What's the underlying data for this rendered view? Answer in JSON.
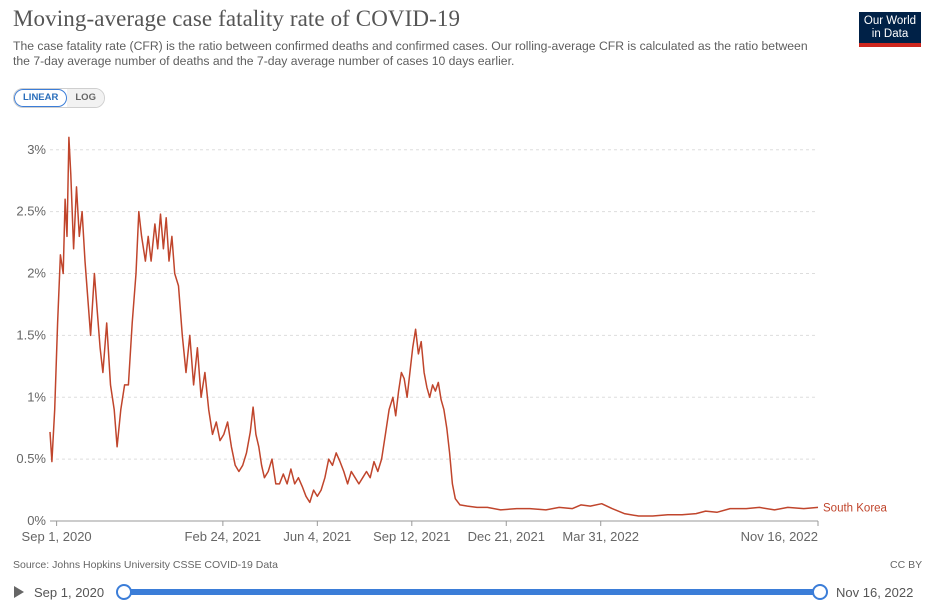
{
  "header": {
    "title": "Moving-average case fatality rate of COVID-19",
    "subtitle": "The case fatality rate (CFR) is the ratio between confirmed deaths and confirmed cases. Our rolling-average CFR is calculated as the ratio between the 7-day average number of deaths and the 7-day average number of cases 10 days earlier.",
    "logo_line1": "Our World",
    "logo_line2": "in Data"
  },
  "controls": {
    "linear_label": "LINEAR",
    "log_label": "LOG"
  },
  "footer": {
    "source": "Source: Johns Hopkins University CSSE COVID-19 Data",
    "license": "CC BY"
  },
  "timeline": {
    "start_label": "Sep 1, 2020",
    "end_label": "Nov 16, 2022"
  },
  "colors": {
    "series": "#c0452c",
    "grid": "#dddddd",
    "axis": "#666666",
    "accent": "#3b7dd8"
  },
  "chart_data": {
    "type": "line",
    "title": "Moving-average case fatality rate of COVID-19",
    "xlabel": "",
    "ylabel": "",
    "ylim": [
      0,
      3.2
    ],
    "y_ticks": [
      0,
      0.5,
      1,
      1.5,
      2,
      2.5,
      3
    ],
    "y_tick_labels": [
      "0%",
      "0.5%",
      "1%",
      "1.5%",
      "2%",
      "2.5%",
      "3%"
    ],
    "x_range": [
      "2020-08-25",
      "2022-11-16"
    ],
    "x_ticks": [
      "2020-09-01",
      "2021-02-24",
      "2021-06-04",
      "2021-09-12",
      "2021-12-21",
      "2022-03-31",
      "2022-11-16"
    ],
    "x_tick_labels": [
      "Sep 1, 2020",
      "Feb 24, 2021",
      "Jun 4, 2021",
      "Sep 12, 2021",
      "Dec 21, 2021",
      "Mar 31, 2022",
      "Nov 16, 2022"
    ],
    "grid": true,
    "series": [
      {
        "name": "South Korea",
        "points": [
          [
            "2020-08-25",
            0.72
          ],
          [
            "2020-08-27",
            0.48
          ],
          [
            "2020-08-30",
            0.9
          ],
          [
            "2020-09-02",
            1.6
          ],
          [
            "2020-09-05",
            2.15
          ],
          [
            "2020-09-08",
            2.0
          ],
          [
            "2020-09-10",
            2.6
          ],
          [
            "2020-09-12",
            2.3
          ],
          [
            "2020-09-14",
            3.1
          ],
          [
            "2020-09-16",
            2.8
          ],
          [
            "2020-09-19",
            2.2
          ],
          [
            "2020-09-22",
            2.7
          ],
          [
            "2020-09-25",
            2.3
          ],
          [
            "2020-09-28",
            2.5
          ],
          [
            "2020-10-01",
            2.1
          ],
          [
            "2020-10-04",
            1.8
          ],
          [
            "2020-10-07",
            1.5
          ],
          [
            "2020-10-11",
            2.0
          ],
          [
            "2020-10-14",
            1.7
          ],
          [
            "2020-10-17",
            1.4
          ],
          [
            "2020-10-20",
            1.2
          ],
          [
            "2020-10-24",
            1.6
          ],
          [
            "2020-10-28",
            1.1
          ],
          [
            "2020-11-01",
            0.9
          ],
          [
            "2020-11-04",
            0.6
          ],
          [
            "2020-11-08",
            0.9
          ],
          [
            "2020-11-12",
            1.1
          ],
          [
            "2020-11-16",
            1.1
          ],
          [
            "2020-11-20",
            1.6
          ],
          [
            "2020-11-24",
            2.0
          ],
          [
            "2020-11-27",
            2.5
          ],
          [
            "2020-11-30",
            2.3
          ],
          [
            "2020-12-04",
            2.1
          ],
          [
            "2020-12-07",
            2.3
          ],
          [
            "2020-12-10",
            2.1
          ],
          [
            "2020-12-14",
            2.4
          ],
          [
            "2020-12-17",
            2.2
          ],
          [
            "2020-12-20",
            2.48
          ],
          [
            "2020-12-23",
            2.2
          ],
          [
            "2020-12-26",
            2.45
          ],
          [
            "2020-12-29",
            2.1
          ],
          [
            "2021-01-01",
            2.3
          ],
          [
            "2021-01-04",
            2.0
          ],
          [
            "2021-01-08",
            1.9
          ],
          [
            "2021-01-12",
            1.5
          ],
          [
            "2021-01-16",
            1.2
          ],
          [
            "2021-01-20",
            1.5
          ],
          [
            "2021-01-24",
            1.1
          ],
          [
            "2021-01-28",
            1.4
          ],
          [
            "2021-02-01",
            1.0
          ],
          [
            "2021-02-05",
            1.2
          ],
          [
            "2021-02-09",
            0.9
          ],
          [
            "2021-02-13",
            0.7
          ],
          [
            "2021-02-17",
            0.8
          ],
          [
            "2021-02-21",
            0.65
          ],
          [
            "2021-02-25",
            0.7
          ],
          [
            "2021-03-01",
            0.8
          ],
          [
            "2021-03-05",
            0.6
          ],
          [
            "2021-03-09",
            0.45
          ],
          [
            "2021-03-13",
            0.4
          ],
          [
            "2021-03-17",
            0.45
          ],
          [
            "2021-03-21",
            0.55
          ],
          [
            "2021-03-25",
            0.72
          ],
          [
            "2021-03-28",
            0.92
          ],
          [
            "2021-03-31",
            0.7
          ],
          [
            "2021-04-03",
            0.6
          ],
          [
            "2021-04-06",
            0.45
          ],
          [
            "2021-04-09",
            0.35
          ],
          [
            "2021-04-13",
            0.4
          ],
          [
            "2021-04-17",
            0.5
          ],
          [
            "2021-04-21",
            0.3
          ],
          [
            "2021-04-25",
            0.3
          ],
          [
            "2021-04-29",
            0.38
          ],
          [
            "2021-05-03",
            0.3
          ],
          [
            "2021-05-07",
            0.42
          ],
          [
            "2021-05-11",
            0.3
          ],
          [
            "2021-05-15",
            0.35
          ],
          [
            "2021-05-19",
            0.28
          ],
          [
            "2021-05-23",
            0.2
          ],
          [
            "2021-05-27",
            0.15
          ],
          [
            "2021-05-31",
            0.25
          ],
          [
            "2021-06-04",
            0.2
          ],
          [
            "2021-06-08",
            0.25
          ],
          [
            "2021-06-12",
            0.35
          ],
          [
            "2021-06-16",
            0.5
          ],
          [
            "2021-06-20",
            0.45
          ],
          [
            "2021-06-24",
            0.55
          ],
          [
            "2021-06-28",
            0.48
          ],
          [
            "2021-07-02",
            0.4
          ],
          [
            "2021-07-06",
            0.3
          ],
          [
            "2021-07-10",
            0.4
          ],
          [
            "2021-07-14",
            0.35
          ],
          [
            "2021-07-18",
            0.3
          ],
          [
            "2021-07-22",
            0.35
          ],
          [
            "2021-07-26",
            0.4
          ],
          [
            "2021-07-30",
            0.35
          ],
          [
            "2021-08-03",
            0.48
          ],
          [
            "2021-08-07",
            0.4
          ],
          [
            "2021-08-11",
            0.5
          ],
          [
            "2021-08-15",
            0.7
          ],
          [
            "2021-08-19",
            0.9
          ],
          [
            "2021-08-23",
            1.0
          ],
          [
            "2021-08-26",
            0.85
          ],
          [
            "2021-08-29",
            1.05
          ],
          [
            "2021-09-01",
            1.2
          ],
          [
            "2021-09-04",
            1.15
          ],
          [
            "2021-09-07",
            1.0
          ],
          [
            "2021-09-10",
            1.2
          ],
          [
            "2021-09-13",
            1.4
          ],
          [
            "2021-09-16",
            1.55
          ],
          [
            "2021-09-19",
            1.35
          ],
          [
            "2021-09-22",
            1.45
          ],
          [
            "2021-09-25",
            1.2
          ],
          [
            "2021-09-28",
            1.08
          ],
          [
            "2021-10-01",
            1.0
          ],
          [
            "2021-10-04",
            1.1
          ],
          [
            "2021-10-07",
            1.05
          ],
          [
            "2021-10-10",
            1.12
          ],
          [
            "2021-10-13",
            0.98
          ],
          [
            "2021-10-16",
            0.9
          ],
          [
            "2021-10-19",
            0.75
          ],
          [
            "2021-10-22",
            0.55
          ],
          [
            "2021-10-25",
            0.3
          ],
          [
            "2021-10-28",
            0.18
          ],
          [
            "2021-11-02",
            0.13
          ],
          [
            "2021-11-10",
            0.12
          ],
          [
            "2021-11-20",
            0.11
          ],
          [
            "2021-12-01",
            0.11
          ],
          [
            "2021-12-15",
            0.09
          ],
          [
            "2022-01-01",
            0.1
          ],
          [
            "2022-01-15",
            0.1
          ],
          [
            "2022-02-01",
            0.09
          ],
          [
            "2022-02-15",
            0.11
          ],
          [
            "2022-03-01",
            0.1
          ],
          [
            "2022-03-10",
            0.13
          ],
          [
            "2022-03-20",
            0.12
          ],
          [
            "2022-04-01",
            0.14
          ],
          [
            "2022-04-12",
            0.1
          ],
          [
            "2022-04-25",
            0.06
          ],
          [
            "2022-05-10",
            0.04
          ],
          [
            "2022-05-25",
            0.04
          ],
          [
            "2022-06-10",
            0.05
          ],
          [
            "2022-06-25",
            0.05
          ],
          [
            "2022-07-10",
            0.06
          ],
          [
            "2022-07-20",
            0.08
          ],
          [
            "2022-08-01",
            0.07
          ],
          [
            "2022-08-15",
            0.1
          ],
          [
            "2022-09-01",
            0.1
          ],
          [
            "2022-09-15",
            0.11
          ],
          [
            "2022-10-01",
            0.09
          ],
          [
            "2022-10-15",
            0.11
          ],
          [
            "2022-11-01",
            0.1
          ],
          [
            "2022-11-16",
            0.11
          ]
        ]
      }
    ]
  }
}
